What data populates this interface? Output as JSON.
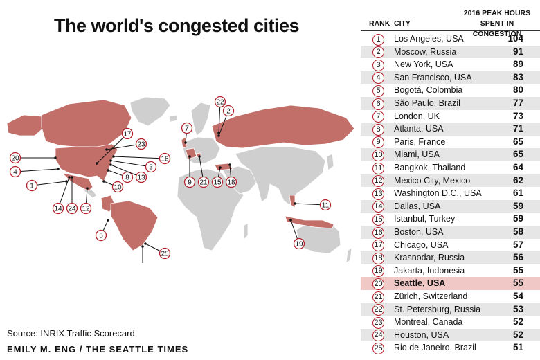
{
  "title": "The world's congested cities",
  "source": "Source: INRIX Traffic Scorecard",
  "credit": "EMILY M. ENG / THE SEATTLE TIMES",
  "colors": {
    "highlight_land": "#c26f6a",
    "land": "#cfcfcf",
    "marker_ring": "#b3202a",
    "highlight_row": "#f0c9c6"
  },
  "table": {
    "rank_header": "RANK",
    "city_header": "CITY",
    "hours_header_line1": "2016 PEAK HOURS",
    "hours_header_line2": "SPENT IN CONGESTION"
  },
  "chart_data": {
    "type": "table",
    "title": "The world's congested cities",
    "columns": [
      "RANK",
      "CITY",
      "2016 PEAK HOURS SPENT IN CONGESTION"
    ],
    "highlight_rank": 20,
    "rows": [
      {
        "rank": "1",
        "city": "Los Angeles, USA",
        "hours": "104"
      },
      {
        "rank": "2",
        "city": "Moscow, Russia",
        "hours": "91"
      },
      {
        "rank": "3",
        "city": "New York, USA",
        "hours": "89"
      },
      {
        "rank": "4",
        "city": "San Francisco, USA",
        "hours": "83"
      },
      {
        "rank": "5",
        "city": "Bogotá, Colombia",
        "hours": "80"
      },
      {
        "rank": "6",
        "city": "São Paulo, Brazil",
        "hours": "77"
      },
      {
        "rank": "7",
        "city": "London, UK",
        "hours": "73"
      },
      {
        "rank": "8",
        "city": "Atlanta, USA",
        "hours": "71"
      },
      {
        "rank": "9",
        "city": "Paris, France",
        "hours": "65"
      },
      {
        "rank": "10",
        "city": "Miami, USA",
        "hours": "65"
      },
      {
        "rank": "11",
        "city": "Bangkok, Thailand",
        "hours": "64"
      },
      {
        "rank": "12",
        "city": "Mexico City, Mexico",
        "hours": "62"
      },
      {
        "rank": "13",
        "city": "Washington D.C., USA",
        "hours": "61"
      },
      {
        "rank": "14",
        "city": "Dallas, USA",
        "hours": "59"
      },
      {
        "rank": "15",
        "city": "Istanbul, Turkey",
        "hours": "59"
      },
      {
        "rank": "16",
        "city": "Boston, USA",
        "hours": "58"
      },
      {
        "rank": "17",
        "city": "Chicago, USA",
        "hours": "57"
      },
      {
        "rank": "18",
        "city": "Krasnodar, Russia",
        "hours": "56"
      },
      {
        "rank": "19",
        "city": "Jakarta, Indonesia",
        "hours": "55"
      },
      {
        "rank": "20",
        "city": "Seattle, USA",
        "hours": "55"
      },
      {
        "rank": "21",
        "city": "Zürich, Switzerland",
        "hours": "54"
      },
      {
        "rank": "22",
        "city": "St. Petersburg, Russia",
        "hours": "53"
      },
      {
        "rank": "23",
        "city": "Montreal, Canada",
        "hours": "52"
      },
      {
        "rank": "24",
        "city": "Houston, USA",
        "hours": "52"
      },
      {
        "rank": "25",
        "city": "Rio de Janeiro, Brazil",
        "hours": "51"
      }
    ]
  }
}
